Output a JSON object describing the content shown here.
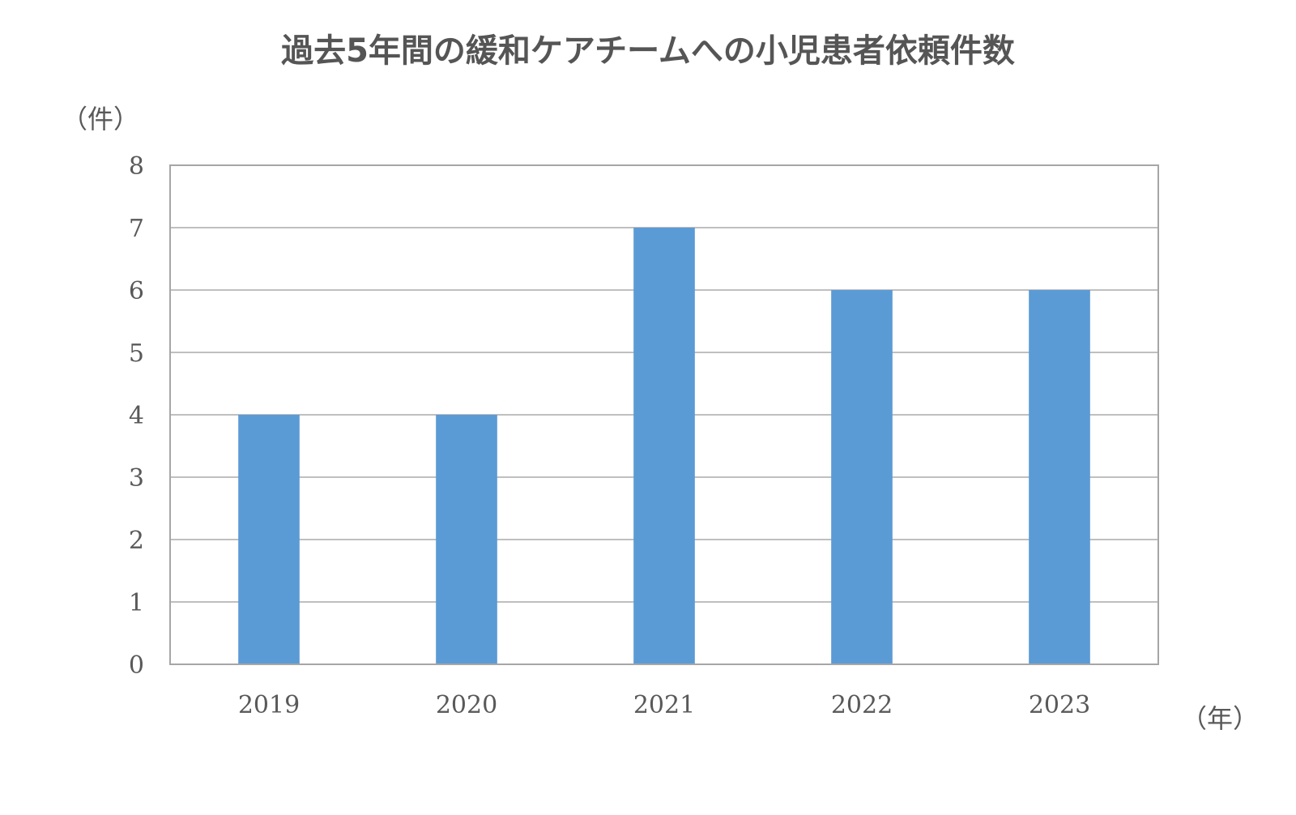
{
  "chart_data": {
    "type": "bar",
    "title": "過去5年間の緩和ケアチームへの小児患者依頼件数",
    "xlabel": "（年）",
    "ylabel": "（件）",
    "categories": [
      "2019",
      "2020",
      "2021",
      "2022",
      "2023"
    ],
    "values": [
      4,
      4,
      7,
      6,
      6
    ],
    "ylim": [
      0,
      8
    ],
    "yticks": [
      "0",
      "1",
      "2",
      "3",
      "4",
      "5",
      "6",
      "7",
      "8"
    ],
    "grid": true,
    "legend": "none",
    "bar_color": "#5B9BD5",
    "grid_color": "#BFBFBF",
    "border_color": "#A6A6A6",
    "text_color": "#595959"
  }
}
